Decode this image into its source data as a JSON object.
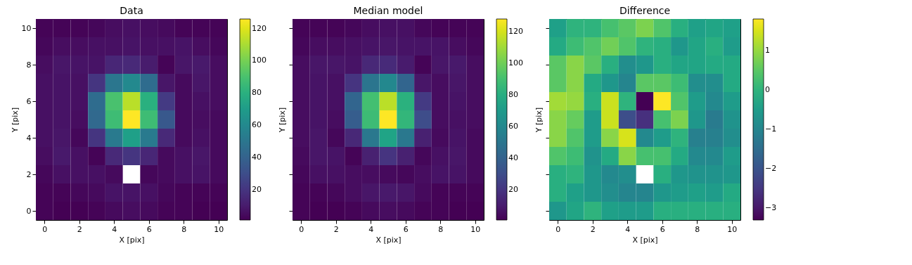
{
  "chart_data": [
    {
      "type": "heatmap",
      "title": "Data",
      "xlabel": "X [pix]",
      "ylabel": "Y [pix]",
      "grid": false,
      "categories": [
        "0",
        null,
        "2",
        null,
        "4",
        null,
        "6",
        null,
        "8",
        null,
        "10"
      ],
      "y_categories": [
        "10",
        null,
        "8",
        null,
        "6",
        null,
        "4",
        null,
        "2",
        null,
        "0"
      ],
      "cells": [
        [
          2,
          2,
          2,
          3,
          5,
          6,
          5,
          4,
          2,
          2,
          2
        ],
        [
          3,
          5,
          5,
          6,
          6,
          7,
          6,
          6,
          7,
          5,
          3
        ],
        [
          5,
          8,
          7,
          7,
          14,
          15,
          10,
          2,
          8,
          9,
          5
        ],
        [
          6,
          7,
          6,
          20,
          50,
          60,
          45,
          8,
          4,
          8,
          5
        ],
        [
          6,
          7,
          6,
          45,
          90,
          113,
          80,
          22,
          4,
          6,
          5
        ],
        [
          6,
          7,
          5,
          43,
          87,
          126,
          87,
          35,
          4,
          5,
          4
        ],
        [
          6,
          8,
          3,
          20,
          52,
          72,
          52,
          15,
          4,
          6,
          4
        ],
        [
          5,
          9,
          6,
          2,
          15,
          20,
          14,
          4,
          6,
          8,
          4
        ],
        [
          3,
          6,
          6,
          6,
          4,
          null,
          3,
          4,
          6,
          7,
          4
        ],
        [
          2,
          2,
          3,
          4,
          7,
          7,
          6,
          3,
          2,
          2,
          2
        ],
        [
          2,
          1,
          1,
          2,
          4,
          5,
          4,
          2,
          2,
          1,
          1
        ]
      ],
      "clim": [
        1,
        126
      ],
      "cticks": [
        20,
        40,
        60,
        80,
        100,
        120
      ]
    },
    {
      "type": "heatmap",
      "title": "Median model",
      "xlabel": "X [pix]",
      "ylabel": "Y [pix]",
      "grid": false,
      "tick_labels": "x",
      "categories": [
        "0",
        null,
        "2",
        null,
        "4",
        null,
        "6",
        null,
        "8",
        null,
        "10"
      ],
      "y_categories": [
        "10",
        null,
        "8",
        null,
        "6",
        null,
        "4",
        null,
        "2",
        null,
        "0"
      ],
      "cells": [
        [
          2,
          2,
          2,
          3,
          5,
          6,
          6,
          3,
          2,
          2,
          2
        ],
        [
          3,
          5,
          5,
          6,
          7,
          8,
          7,
          7,
          7,
          5,
          3
        ],
        [
          5,
          8,
          8,
          7,
          15,
          16,
          10,
          2,
          8,
          9,
          5
        ],
        [
          5,
          7,
          6,
          20,
          50,
          60,
          42,
          8,
          5,
          8,
          5
        ],
        [
          5,
          7,
          6,
          42,
          90,
          115,
          82,
          22,
          5,
          7,
          5
        ],
        [
          5,
          7,
          5,
          38,
          88,
          128,
          85,
          30,
          5,
          6,
          5
        ],
        [
          5,
          8,
          3,
          15,
          52,
          75,
          52,
          12,
          4,
          7,
          4
        ],
        [
          4,
          8,
          7,
          2,
          12,
          20,
          12,
          3,
          6,
          8,
          4
        ],
        [
          3,
          6,
          6,
          5,
          5,
          4,
          3,
          5,
          7,
          7,
          4
        ],
        [
          2,
          2,
          3,
          5,
          8,
          9,
          8,
          4,
          2,
          2,
          2
        ],
        [
          2,
          1,
          1,
          2,
          4,
          5,
          4,
          2,
          2,
          1,
          1
        ]
      ],
      "clim": [
        1,
        128
      ],
      "cticks": [
        20,
        40,
        60,
        80,
        100,
        120
      ]
    },
    {
      "type": "heatmap",
      "title": "Difference",
      "xlabel": "X [pix]",
      "ylabel": "Y [pix]",
      "grid": false,
      "tick_labels": "x",
      "categories": [
        "0",
        null,
        "2",
        null,
        "4",
        null,
        "6",
        null,
        "8",
        null,
        "10"
      ],
      "y_categories": [
        "10",
        null,
        "8",
        null,
        "6",
        null,
        "4",
        null,
        "2",
        null,
        "0"
      ],
      "cells": [
        [
          -0.4,
          0,
          0,
          0.3,
          0.5,
          0.8,
          0.4,
          -0.1,
          -0.4,
          -0.3,
          -0.4
        ],
        [
          -0.2,
          0.2,
          0.4,
          0.7,
          0.4,
          0,
          -0.1,
          -0.6,
          -0.3,
          -0.1,
          -0.5
        ],
        [
          0.5,
          0.9,
          0.5,
          -0.1,
          -0.8,
          -0.6,
          -0.1,
          -0.3,
          -0.3,
          -0.2,
          -0.2
        ],
        [
          0.5,
          0.9,
          -0.2,
          -0.6,
          -1.0,
          0.5,
          0.5,
          0.2,
          -0.8,
          -0.8,
          -0.2
        ],
        [
          1.1,
          1.0,
          -0.1,
          1.4,
          0,
          -3.3,
          1.8,
          0.4,
          -0.5,
          -0.9,
          -0.5
        ],
        [
          0.9,
          0.6,
          -0.5,
          1.4,
          -2.1,
          -2.6,
          0.3,
          0.8,
          -0.6,
          -1.2,
          -0.7
        ],
        [
          0.9,
          0.4,
          -0.5,
          0.9,
          1.5,
          -0.9,
          -0.5,
          0,
          -1.1,
          -1.1,
          -0.8
        ],
        [
          0.4,
          0.2,
          -0.7,
          -0.2,
          0.9,
          0.3,
          0.3,
          -0.2,
          -0.9,
          -0.9,
          -0.5
        ],
        [
          -0.1,
          0,
          -0.6,
          -0.9,
          -0.8,
          null,
          -0.1,
          -0.6,
          -0.7,
          -0.7,
          -0.6
        ],
        [
          -0.1,
          -0.4,
          -0.6,
          -0.8,
          -1.0,
          -1.0,
          -0.6,
          -0.5,
          -0.4,
          -0.5,
          -0.2
        ],
        [
          -0.6,
          -0.3,
          0,
          -0.4,
          -0.5,
          -0.5,
          -0.1,
          -0.1,
          -0.1,
          -0.1,
          -0.1
        ]
      ],
      "clim": [
        -3.3,
        1.8
      ],
      "cticks": [
        -3,
        -2,
        -1,
        0,
        1
      ]
    }
  ]
}
